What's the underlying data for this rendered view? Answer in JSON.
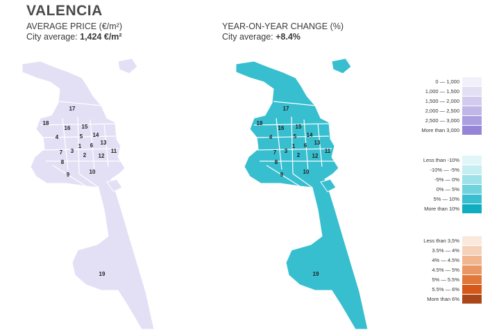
{
  "title": "VALENCIA",
  "left_header": {
    "line1": "AVERAGE PRICE (€/m²)",
    "avg_prefix": "City average: ",
    "avg_value": "1,424 €/m²"
  },
  "right_header": {
    "line1": "YEAR-ON-YEAR CHANGE (%)",
    "avg_prefix": "City average: ",
    "avg_value": "+8.4%"
  },
  "district_labels": [
    "17",
    "18",
    "16",
    "15",
    "4",
    "5",
    "14",
    "1",
    "13",
    "6",
    "7",
    "3",
    "2",
    "12",
    "11",
    "8",
    "9",
    "10",
    "19"
  ],
  "colors": {
    "price_fill": "#e3e0f5",
    "change_fill": "#37bfcf",
    "border": "#ffffff"
  },
  "legend_price": [
    {
      "label": "0  —  1,000",
      "color": "#f2f0fa"
    },
    {
      "label": "1,000  —  1,500",
      "color": "#e3dff4"
    },
    {
      "label": "1,500  —  2,000",
      "color": "#d2cbee"
    },
    {
      "label": "2,000  —  2,500",
      "color": "#c0b6e8"
    },
    {
      "label": "2,500  —  3,000",
      "color": "#ab9fe0"
    },
    {
      "label": "More than 3,000",
      "color": "#9684d8"
    }
  ],
  "legend_change": [
    {
      "label": "Less than -10%",
      "color": "#e1f6f8"
    },
    {
      "label": "-10%  —  -5%",
      "color": "#c4eef2"
    },
    {
      "label": "-5%  —  0%",
      "color": "#9fe1e8"
    },
    {
      "label": "0%  —  5%",
      "color": "#6fd2dd"
    },
    {
      "label": "5%  —  10%",
      "color": "#37bfcf"
    },
    {
      "label": "More than 10%",
      "color": "#10acc0"
    }
  ],
  "legend_other": [
    {
      "label": "Less than 3,5%",
      "color": "#fbe8dc"
    },
    {
      "label": "3.5%  —  4%",
      "color": "#f6d1ba"
    },
    {
      "label": "4%  —  4.5%",
      "color": "#f0b690"
    },
    {
      "label": "4.5%  —  5%",
      "color": "#ea9765"
    },
    {
      "label": "5%  —  5.5%",
      "color": "#e2773b"
    },
    {
      "label": "5.5%  —  6%",
      "color": "#d5571a"
    },
    {
      "label": "More than 6%",
      "color": "#a9461a"
    }
  ]
}
